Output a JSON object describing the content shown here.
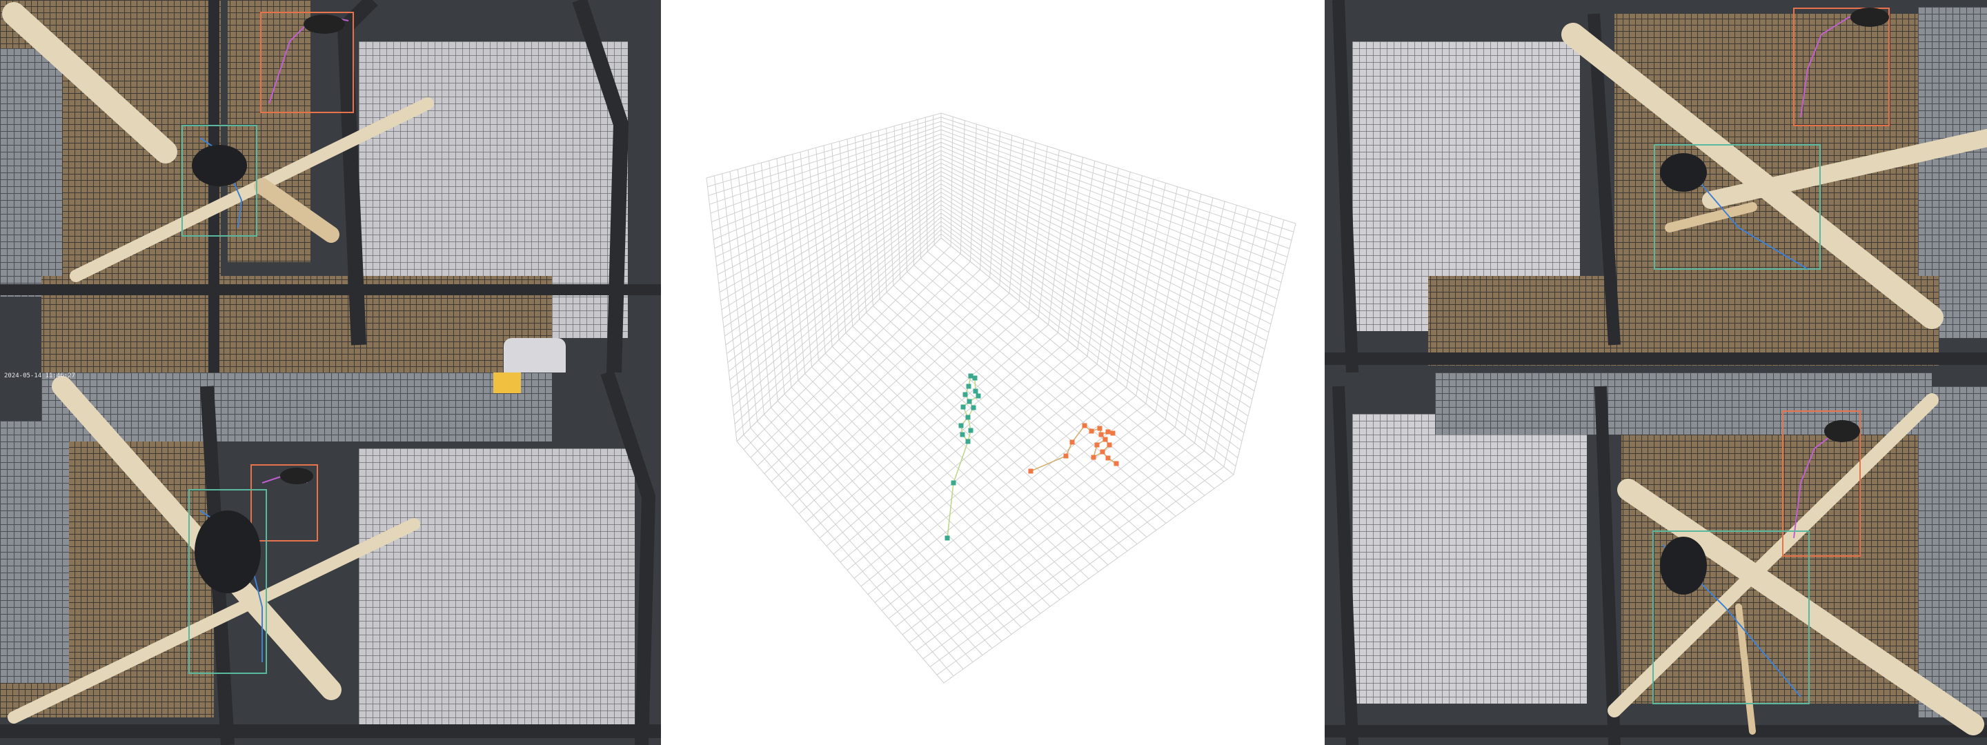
{
  "window": {
    "panels": [
      "camera-view-left",
      "3d-reconstruction",
      "camera-view-right"
    ]
  },
  "left_panel": {
    "timestamp": "2024-05-14 11:46:27",
    "cameras": [
      "top-left",
      "bottom-left"
    ],
    "subjects": [
      {
        "camera": "top-left",
        "box_color": "#e8724a",
        "label_color": "#c060d0"
      },
      {
        "camera": "top-left",
        "box_color": "#58b8a0",
        "label_color": "#4080d0"
      },
      {
        "camera": "bottom-left",
        "box_color": "#e8724a",
        "label_color": "#c060d0"
      },
      {
        "camera": "bottom-left",
        "box_color": "#58b8a0",
        "label_color": "#4080d0"
      }
    ]
  },
  "center_panel": {
    "view": "3d-skeleton-plot",
    "grid": true,
    "series": [
      {
        "color": "#3aa88e",
        "bone_color": "#bcd88a"
      },
      {
        "color": "#f07844",
        "bone_color": "#d4b070"
      }
    ]
  },
  "right_panel": {
    "timestamp": "",
    "cameras": [
      "top-right",
      "bottom-right"
    ],
    "subjects": [
      {
        "camera": "top-right",
        "box_color": "#e8724a",
        "label_color": "#c060d0"
      },
      {
        "camera": "top-right",
        "box_color": "#58b8a0",
        "label_color": "#4080d0"
      },
      {
        "camera": "bottom-right",
        "box_color": "#e8724a",
        "label_color": "#c060d0"
      },
      {
        "camera": "bottom-right",
        "box_color": "#58b8a0",
        "label_color": "#4080d0"
      }
    ]
  },
  "colors": {
    "cage_dark": "#3a3d42",
    "cage_mid": "#6b6e73",
    "floor": "#7a6a55",
    "branch": "#e4d6b8",
    "grid_line": "#d0d0d0",
    "teal": "#3aa88e",
    "orange": "#f07844"
  }
}
